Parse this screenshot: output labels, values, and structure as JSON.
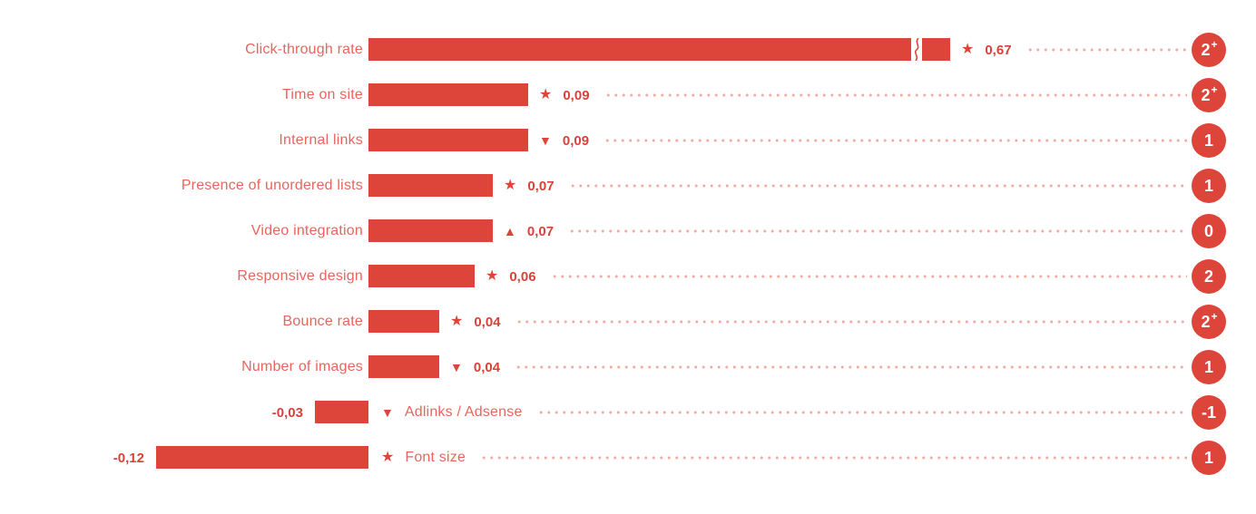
{
  "chart_data": {
    "type": "bar",
    "orientation": "horizontal",
    "title": "",
    "xlabel": "",
    "ylabel": "",
    "value_format": "comma-decimal",
    "axis_baseline": 0,
    "xlim": [
      -0.12,
      0.67
    ],
    "grid": false,
    "legend": "none",
    "categories": [
      "Click-through rate",
      "Time on site",
      "Internal links",
      "Presence of unordered lists",
      "Video integration",
      "Responsive design",
      "Bounce rate",
      "Number of images",
      "Adlinks / Adsense",
      "Font size"
    ],
    "values": [
      0.67,
      0.09,
      0.09,
      0.07,
      0.07,
      0.06,
      0.04,
      0.04,
      -0.03,
      -0.12
    ],
    "rows": [
      {
        "label": "Click-through rate",
        "value": 0.67,
        "value_display": "0,67",
        "icon": "star",
        "badge": "2",
        "badge_sup": "+",
        "truncated": true
      },
      {
        "label": "Time on site",
        "value": 0.09,
        "value_display": "0,09",
        "icon": "star",
        "badge": "2",
        "badge_sup": "+",
        "truncated": false
      },
      {
        "label": "Internal links",
        "value": 0.09,
        "value_display": "0,09",
        "icon": "triangle-down",
        "badge": "1",
        "badge_sup": "",
        "truncated": false
      },
      {
        "label": "Presence of unordered lists",
        "value": 0.07,
        "value_display": "0,07",
        "icon": "star",
        "badge": "1",
        "badge_sup": "",
        "truncated": false
      },
      {
        "label": "Video integration",
        "value": 0.07,
        "value_display": "0,07",
        "icon": "triangle-up",
        "badge": "0",
        "badge_sup": "",
        "truncated": false
      },
      {
        "label": "Responsive design",
        "value": 0.06,
        "value_display": "0,06",
        "icon": "star",
        "badge": "2",
        "badge_sup": "",
        "truncated": false
      },
      {
        "label": "Bounce rate",
        "value": 0.04,
        "value_display": "0,04",
        "icon": "star",
        "badge": "2",
        "badge_sup": "+",
        "truncated": false
      },
      {
        "label": "Number of images",
        "value": 0.04,
        "value_display": "0,04",
        "icon": "triangle-down",
        "badge": "1",
        "badge_sup": "",
        "truncated": false
      },
      {
        "label": "Adlinks / Adsense",
        "value": -0.03,
        "value_display": "-0,03",
        "icon": "triangle-down",
        "badge": "-1",
        "badge_sup": "",
        "truncated": false
      },
      {
        "label": "Font size",
        "value": -0.12,
        "value_display": "-0,12",
        "icon": "star",
        "badge": "1",
        "badge_sup": "",
        "truncated": false
      }
    ],
    "colors": {
      "bar": "#dd453b",
      "category_label": "#e8655d",
      "value_label": "#d8423a",
      "dotted_leader": "#f2aba4",
      "badge_background": "#dd453b",
      "badge_text": "#ffffff",
      "background": "#ffffff"
    }
  }
}
